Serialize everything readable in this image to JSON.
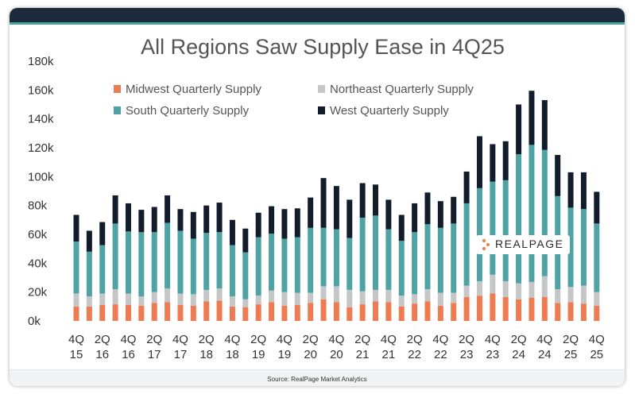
{
  "chart_data": {
    "type": "bar",
    "stacked": true,
    "title": "All Regions Saw Supply Ease in 4Q25",
    "ylim": [
      0,
      180000
    ],
    "yticks": [
      0,
      20000,
      40000,
      60000,
      80000,
      100000,
      120000,
      140000,
      160000,
      180000
    ],
    "ytick_labels": [
      "0k",
      "20k",
      "40k",
      "60k",
      "80k",
      "100k",
      "120k",
      "140k",
      "160k",
      "180k"
    ],
    "grid": false,
    "legend_placement": "top-left",
    "categories": [
      "4Q15",
      "1Q16",
      "2Q16",
      "3Q16",
      "4Q16",
      "1Q17",
      "2Q17",
      "3Q17",
      "4Q17",
      "1Q18",
      "2Q18",
      "3Q18",
      "4Q18",
      "1Q19",
      "2Q19",
      "3Q19",
      "4Q19",
      "1Q20",
      "2Q20",
      "3Q20",
      "4Q20",
      "1Q21",
      "2Q21",
      "3Q21",
      "4Q21",
      "1Q22",
      "2Q22",
      "3Q22",
      "4Q22",
      "1Q23",
      "2Q23",
      "3Q23",
      "4Q23",
      "1Q24",
      "2Q24",
      "3Q24",
      "4Q24",
      "1Q25",
      "2Q25",
      "3Q25",
      "4Q25"
    ],
    "x_tick_labels": [
      {
        "index": 0,
        "top": "4Q",
        "bottom": "15"
      },
      {
        "index": 2,
        "top": "2Q",
        "bottom": "16"
      },
      {
        "index": 4,
        "top": "4Q",
        "bottom": "16"
      },
      {
        "index": 6,
        "top": "2Q",
        "bottom": "17"
      },
      {
        "index": 8,
        "top": "4Q",
        "bottom": "17"
      },
      {
        "index": 10,
        "top": "2Q",
        "bottom": "18"
      },
      {
        "index": 12,
        "top": "4Q",
        "bottom": "18"
      },
      {
        "index": 14,
        "top": "2Q",
        "bottom": "19"
      },
      {
        "index": 16,
        "top": "4Q",
        "bottom": "19"
      },
      {
        "index": 18,
        "top": "2Q",
        "bottom": "20"
      },
      {
        "index": 20,
        "top": "4Q",
        "bottom": "20"
      },
      {
        "index": 22,
        "top": "2Q",
        "bottom": "21"
      },
      {
        "index": 24,
        "top": "4Q",
        "bottom": "21"
      },
      {
        "index": 26,
        "top": "2Q",
        "bottom": "22"
      },
      {
        "index": 28,
        "top": "4Q",
        "bottom": "22"
      },
      {
        "index": 30,
        "top": "2Q",
        "bottom": "23"
      },
      {
        "index": 32,
        "top": "4Q",
        "bottom": "23"
      },
      {
        "index": 34,
        "top": "2Q",
        "bottom": "24"
      },
      {
        "index": 36,
        "top": "4Q",
        "bottom": "24"
      },
      {
        "index": 38,
        "top": "2Q",
        "bottom": "25"
      },
      {
        "index": 40,
        "top": "4Q",
        "bottom": "25"
      }
    ],
    "series": [
      {
        "name": "Midwest Quarterly Supply",
        "color": "#ef7b53",
        "values": [
          10000,
          10000,
          11000,
          11500,
          11000,
          10500,
          12500,
          13000,
          11000,
          10500,
          13500,
          14000,
          10000,
          9500,
          11500,
          13000,
          10500,
          11000,
          12500,
          15000,
          13000,
          9500,
          11500,
          13500,
          13000,
          10000,
          12000,
          13500,
          10500,
          12500,
          16500,
          17500,
          19000,
          16500,
          15000,
          16000,
          16500,
          12500,
          13000,
          12000,
          10500
        ]
      },
      {
        "name": "Northeast Quarterly Supply",
        "color": "#c4c6c8",
        "values": [
          9000,
          7000,
          8000,
          10500,
          8000,
          6500,
          7500,
          9500,
          8000,
          8000,
          8000,
          8500,
          7000,
          5500,
          6000,
          8000,
          9500,
          8500,
          7000,
          9000,
          11000,
          12000,
          9000,
          8000,
          8500,
          7500,
          6500,
          8500,
          9000,
          7000,
          8000,
          10000,
          13000,
          11000,
          11000,
          11000,
          14500,
          9500,
          10500,
          12500,
          9500
        ]
      },
      {
        "name": "South Quarterly Supply",
        "color": "#4fa3a4",
        "values": [
          36000,
          31000,
          33500,
          45500,
          43000,
          44500,
          41500,
          45500,
          43500,
          38500,
          39500,
          39000,
          35500,
          32500,
          40500,
          39500,
          37000,
          38500,
          45000,
          40500,
          39500,
          36000,
          51000,
          51500,
          42000,
          38000,
          43000,
          45000,
          45000,
          48000,
          57000,
          64500,
          64500,
          70000,
          89500,
          95000,
          87500,
          64500,
          55000,
          53000,
          47500
        ]
      },
      {
        "name": "West Quarterly Supply",
        "color": "#131c2b",
        "values": [
          18500,
          14500,
          16000,
          19500,
          19500,
          15500,
          17500,
          19000,
          15000,
          18500,
          19000,
          20500,
          17500,
          16500,
          17000,
          19000,
          20500,
          20000,
          21000,
          34500,
          30000,
          26500,
          24000,
          21500,
          20500,
          18000,
          20000,
          22000,
          18500,
          18500,
          22000,
          36000,
          26000,
          27000,
          34500,
          37500,
          34500,
          28500,
          24500,
          25500,
          22000
        ]
      }
    ],
    "annotation": "REALPAGE"
  },
  "footer": {
    "source": "Source: RealPage Market Analytics"
  }
}
